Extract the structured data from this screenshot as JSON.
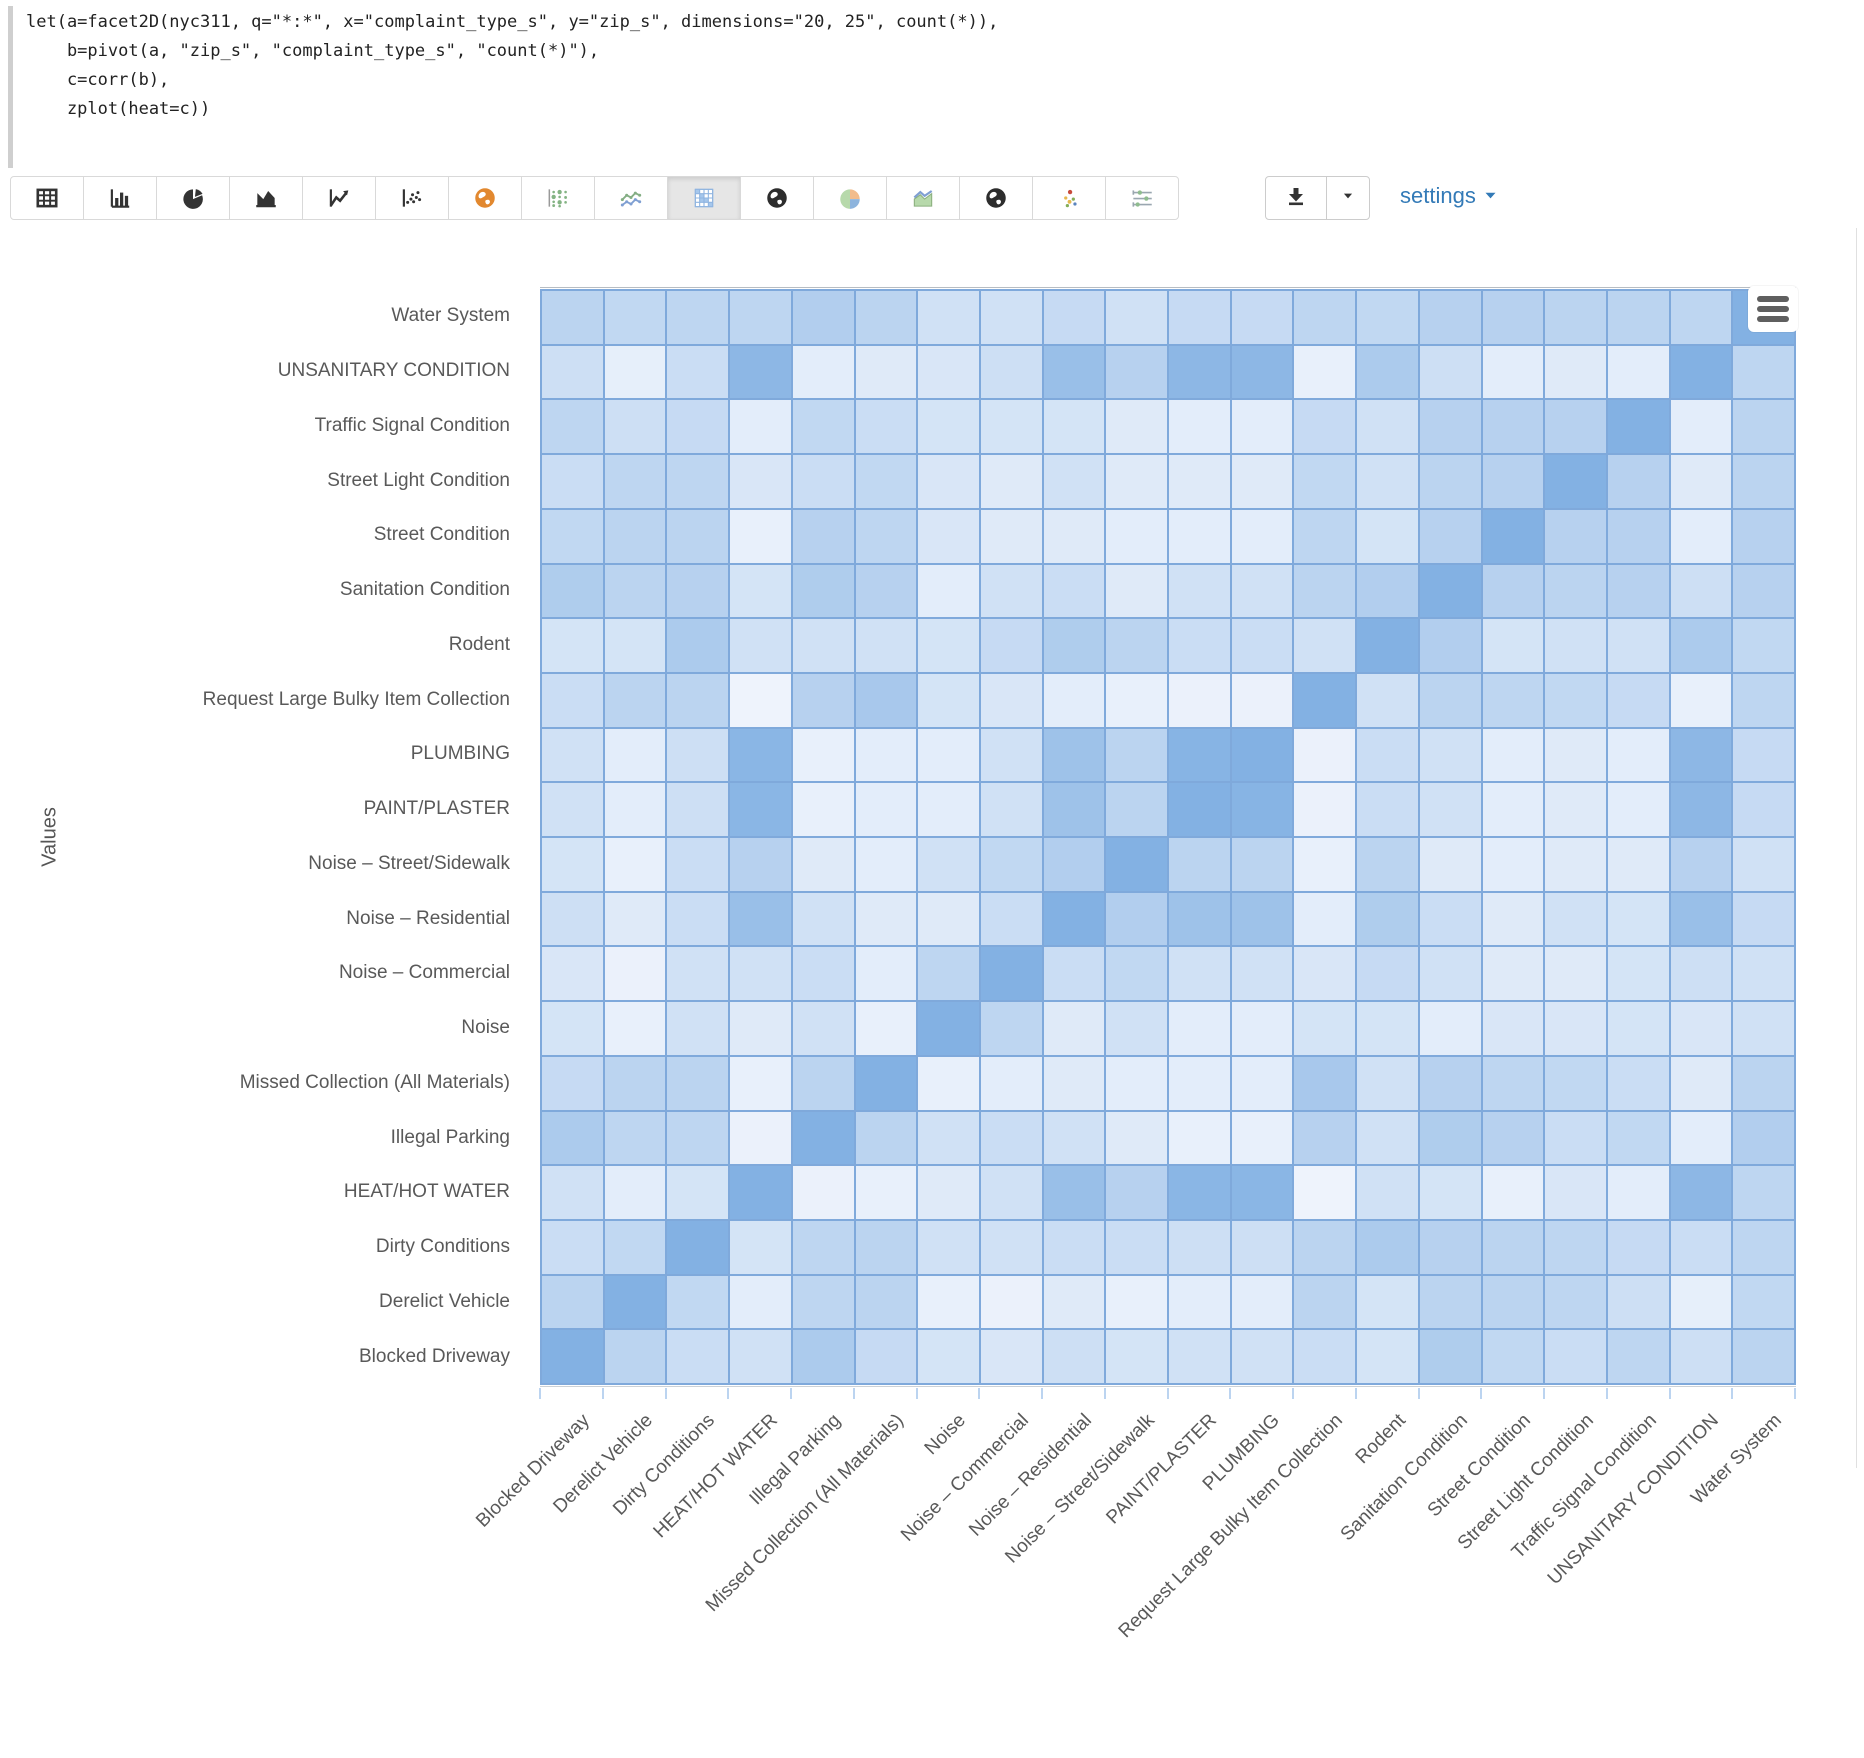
{
  "editor": {
    "code": "let(a=facet2D(nyc311, q=\"*:*\", x=\"complaint_type_s\", y=\"zip_s\", dimensions=\"20, 25\", count(*)),\n    b=pivot(a, \"zip_s\", \"complaint_type_s\", \"count(*)\"),\n    c=corr(b),\n    zplot(heat=c))"
  },
  "toolbar": {
    "icons": [
      {
        "name": "table"
      },
      {
        "name": "bar-chart"
      },
      {
        "name": "pie-chart"
      },
      {
        "name": "area-chart"
      },
      {
        "name": "line-chart"
      },
      {
        "name": "scatter-plot"
      },
      {
        "name": "globe-orange"
      },
      {
        "name": "dot-grid"
      },
      {
        "name": "multi-series-line"
      },
      {
        "name": "heatmap",
        "selected": true
      },
      {
        "name": "globe-dark"
      },
      {
        "name": "pie-chart-color"
      },
      {
        "name": "area-chart-color"
      },
      {
        "name": "globe-dark-2"
      },
      {
        "name": "scatter-color"
      },
      {
        "name": "intervals"
      }
    ],
    "settings_label": "settings"
  },
  "chart_data": {
    "type": "heatmap",
    "ylabel": "Values",
    "legend_position": "none",
    "grid_on": true,
    "colorscale": {
      "low_color": "#f2f6fd",
      "high_color": "#83b1e3",
      "vmin": 0.25,
      "vmax": 1.0
    },
    "x_categories": [
      "Blocked Driveway",
      "Derelict Vehicle",
      "Dirty Conditions",
      "HEAT/HOT WATER",
      "Illegal Parking",
      "Missed Collection (All Materials)",
      "Noise",
      "Noise – Commercial",
      "Noise – Residential",
      "Noise – Street/Sidewalk",
      "PAINT/PLASTER",
      "PLUMBING",
      "Request Large Bulky Item Collection",
      "Rodent",
      "Sanitation Condition",
      "Street Condition",
      "Street Light Condition",
      "Traffic Signal Condition",
      "UNSANITARY CONDITION",
      "Water System"
    ],
    "y_categories_top_to_bottom": [
      "Water System",
      "UNSANITARY CONDITION",
      "Traffic Signal Condition",
      "Street Light Condition",
      "Street Condition",
      "Sanitation Condition",
      "Rodent",
      "Request Large Bulky Item Collection",
      "PLUMBING",
      "PAINT/PLASTER",
      "Noise – Street/Sidewalk",
      "Noise – Residential",
      "Noise – Commercial",
      "Noise",
      "Missed Collection (All Materials)",
      "Illegal Parking",
      "HEAT/HOT WATER",
      "Dirty Conditions",
      "Derelict Vehicle",
      "Blocked Driveway"
    ],
    "matrix_rows_top_to_bottom": [
      [
        0.62,
        0.58,
        0.6,
        0.6,
        0.68,
        0.62,
        0.48,
        0.48,
        0.55,
        0.48,
        0.55,
        0.55,
        0.6,
        0.58,
        0.65,
        0.65,
        0.62,
        0.62,
        0.6,
        1.0
      ],
      [
        0.5,
        0.33,
        0.52,
        0.93,
        0.35,
        0.38,
        0.42,
        0.5,
        0.85,
        0.65,
        0.93,
        0.93,
        0.32,
        0.72,
        0.5,
        0.35,
        0.38,
        0.35,
        1.0,
        0.6
      ],
      [
        0.6,
        0.5,
        0.55,
        0.35,
        0.58,
        0.52,
        0.45,
        0.45,
        0.45,
        0.38,
        0.35,
        0.35,
        0.55,
        0.48,
        0.65,
        0.65,
        0.65,
        1.0,
        0.35,
        0.62
      ],
      [
        0.52,
        0.6,
        0.6,
        0.42,
        0.52,
        0.58,
        0.42,
        0.38,
        0.48,
        0.38,
        0.38,
        0.38,
        0.58,
        0.48,
        0.62,
        0.65,
        1.0,
        0.65,
        0.38,
        0.62
      ],
      [
        0.58,
        0.62,
        0.62,
        0.32,
        0.65,
        0.6,
        0.42,
        0.38,
        0.38,
        0.35,
        0.35,
        0.35,
        0.6,
        0.45,
        0.65,
        1.0,
        0.65,
        0.65,
        0.35,
        0.65
      ],
      [
        0.7,
        0.62,
        0.65,
        0.45,
        0.7,
        0.65,
        0.35,
        0.48,
        0.52,
        0.38,
        0.48,
        0.48,
        0.62,
        0.68,
        1.0,
        0.65,
        0.62,
        0.65,
        0.5,
        0.65
      ],
      [
        0.45,
        0.45,
        0.72,
        0.48,
        0.48,
        0.48,
        0.45,
        0.55,
        0.7,
        0.62,
        0.52,
        0.52,
        0.48,
        1.0,
        0.68,
        0.45,
        0.48,
        0.48,
        0.72,
        0.58
      ],
      [
        0.52,
        0.62,
        0.62,
        0.28,
        0.65,
        0.75,
        0.45,
        0.42,
        0.35,
        0.32,
        0.3,
        0.3,
        1.0,
        0.48,
        0.62,
        0.6,
        0.58,
        0.55,
        0.32,
        0.6
      ],
      [
        0.48,
        0.35,
        0.5,
        0.95,
        0.32,
        0.35,
        0.35,
        0.48,
        0.82,
        0.62,
        0.97,
        1.0,
        0.3,
        0.52,
        0.48,
        0.35,
        0.38,
        0.35,
        0.93,
        0.55
      ],
      [
        0.48,
        0.35,
        0.5,
        0.95,
        0.32,
        0.35,
        0.35,
        0.48,
        0.82,
        0.62,
        1.0,
        0.97,
        0.3,
        0.52,
        0.48,
        0.35,
        0.38,
        0.35,
        0.93,
        0.55
      ],
      [
        0.45,
        0.32,
        0.52,
        0.65,
        0.38,
        0.35,
        0.48,
        0.58,
        0.68,
        1.0,
        0.62,
        0.62,
        0.32,
        0.62,
        0.38,
        0.35,
        0.38,
        0.38,
        0.65,
        0.48
      ],
      [
        0.5,
        0.38,
        0.52,
        0.85,
        0.48,
        0.38,
        0.38,
        0.52,
        1.0,
        0.68,
        0.82,
        0.82,
        0.35,
        0.7,
        0.52,
        0.38,
        0.48,
        0.45,
        0.85,
        0.55
      ],
      [
        0.42,
        0.3,
        0.48,
        0.48,
        0.52,
        0.35,
        0.6,
        1.0,
        0.52,
        0.58,
        0.48,
        0.48,
        0.42,
        0.55,
        0.48,
        0.38,
        0.38,
        0.45,
        0.5,
        0.48
      ],
      [
        0.45,
        0.32,
        0.48,
        0.38,
        0.48,
        0.32,
        1.0,
        0.6,
        0.38,
        0.48,
        0.35,
        0.35,
        0.45,
        0.45,
        0.35,
        0.42,
        0.42,
        0.45,
        0.42,
        0.48
      ],
      [
        0.55,
        0.62,
        0.62,
        0.32,
        0.62,
        1.0,
        0.32,
        0.35,
        0.38,
        0.35,
        0.35,
        0.35,
        0.75,
        0.48,
        0.65,
        0.6,
        0.58,
        0.52,
        0.38,
        0.62
      ],
      [
        0.72,
        0.6,
        0.6,
        0.3,
        1.0,
        0.62,
        0.48,
        0.52,
        0.48,
        0.38,
        0.32,
        0.32,
        0.65,
        0.48,
        0.7,
        0.65,
        0.52,
        0.58,
        0.35,
        0.68
      ],
      [
        0.48,
        0.35,
        0.45,
        1.0,
        0.3,
        0.32,
        0.38,
        0.48,
        0.85,
        0.65,
        0.95,
        0.95,
        0.28,
        0.48,
        0.45,
        0.32,
        0.42,
        0.35,
        0.93,
        0.6
      ],
      [
        0.52,
        0.58,
        1.0,
        0.45,
        0.6,
        0.62,
        0.48,
        0.48,
        0.52,
        0.52,
        0.5,
        0.5,
        0.62,
        0.72,
        0.65,
        0.62,
        0.6,
        0.55,
        0.52,
        0.6
      ],
      [
        0.62,
        1.0,
        0.58,
        0.35,
        0.6,
        0.62,
        0.32,
        0.3,
        0.38,
        0.32,
        0.35,
        0.35,
        0.62,
        0.45,
        0.62,
        0.62,
        0.6,
        0.5,
        0.33,
        0.58
      ],
      [
        1.0,
        0.62,
        0.52,
        0.48,
        0.72,
        0.55,
        0.45,
        0.42,
        0.5,
        0.45,
        0.48,
        0.48,
        0.52,
        0.45,
        0.7,
        0.58,
        0.52,
        0.6,
        0.5,
        0.62
      ]
    ]
  }
}
